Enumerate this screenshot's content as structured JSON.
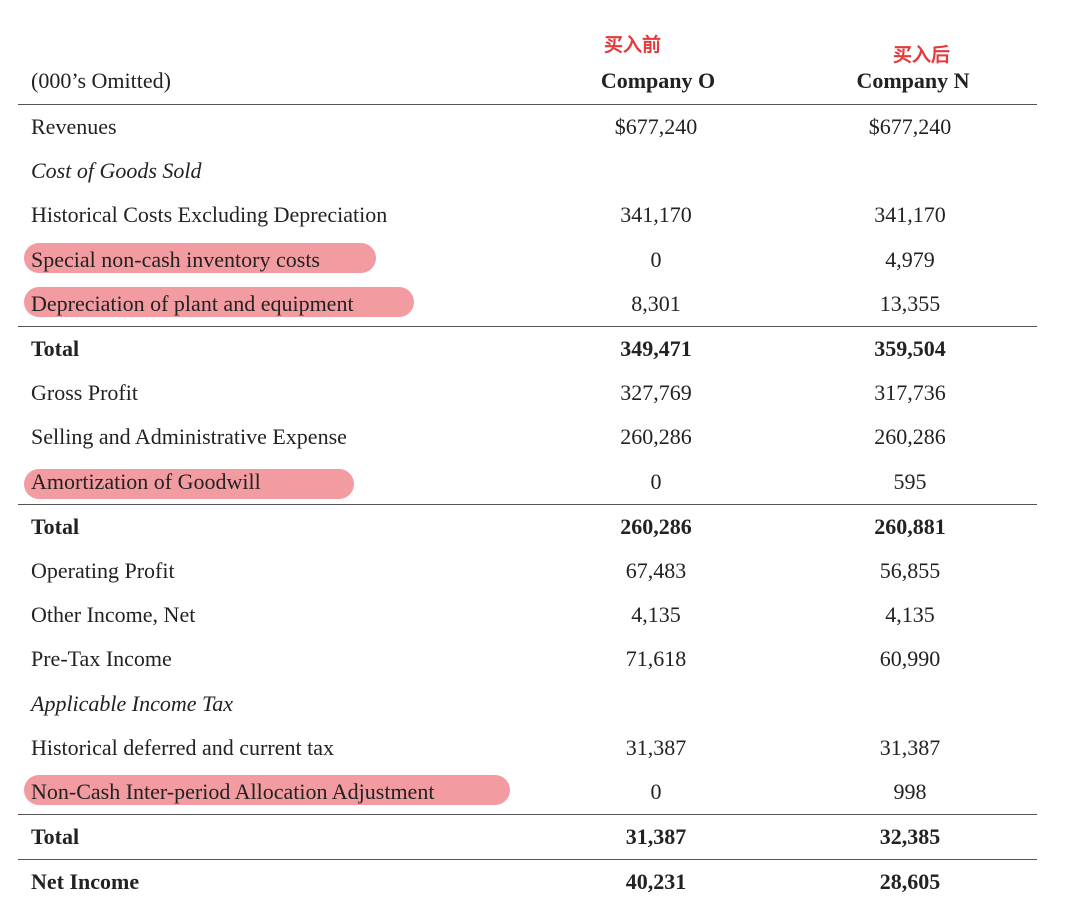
{
  "annotations": {
    "company_o": "买入前",
    "company_n": "买入后",
    "color": "#e5393b"
  },
  "highlight_color": "#f08a91",
  "table": {
    "unit_label": "(000’s Omitted)",
    "col_o": "Company O",
    "col_n": "Company N",
    "rows": [
      {
        "label": "Revenues",
        "o": "$677,240",
        "n": "$677,240"
      },
      {
        "label": "Cost of Goods Sold",
        "o": "",
        "n": ""
      },
      {
        "label": "Historical Costs Excluding Depreciation",
        "o": "341,170",
        "n": "341,170"
      },
      {
        "label": "Special non-cash inventory costs",
        "o": "0",
        "n": "4,979"
      },
      {
        "label": "Depreciation of plant and equipment",
        "o": "8,301",
        "n": "13,355"
      },
      {
        "label": "Total",
        "o": "349,471",
        "n": "359,504"
      },
      {
        "label": "Gross Profit",
        "o": "327,769",
        "n": "317,736"
      },
      {
        "label": "Selling and Administrative Expense",
        "o": "260,286",
        "n": "260,286"
      },
      {
        "label": "Amortization of Goodwill",
        "o": "0",
        "n": "595"
      },
      {
        "label": "Total",
        "o": "260,286",
        "n": "260,881"
      },
      {
        "label": "Operating Profit",
        "o": "67,483",
        "n": "56,855"
      },
      {
        "label": "Other Income, Net",
        "o": "4,135",
        "n": "4,135"
      },
      {
        "label": "Pre-Tax Income",
        "o": "71,618",
        "n": "60,990"
      },
      {
        "label": "Applicable Income Tax",
        "o": "",
        "n": ""
      },
      {
        "label": "Historical deferred and current tax",
        "o": "31,387",
        "n": "31,387"
      },
      {
        "label": "Non-Cash Inter-period Allocation Adjustment",
        "o": "0",
        "n": "998"
      },
      {
        "label": "Total",
        "o": "31,387",
        "n": "32,385"
      },
      {
        "label": "Net Income",
        "o": "40,231",
        "n": "28,605"
      }
    ]
  }
}
